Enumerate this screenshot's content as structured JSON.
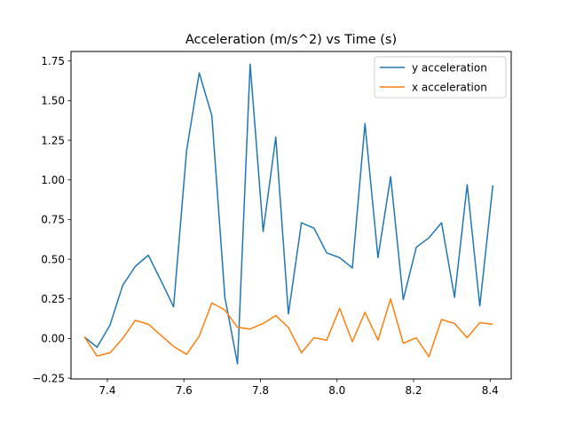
{
  "chart_data": {
    "type": "line",
    "title": "Acceleration (m/s^2) vs Time (s)",
    "xlabel": "",
    "ylabel": "",
    "xlim": [
      7.305,
      8.455
    ],
    "ylim": [
      -0.255,
      1.81
    ],
    "xticks": [
      7.4,
      7.6,
      7.8,
      8.0,
      8.2,
      8.4
    ],
    "xtick_labels": [
      "7.4",
      "7.6",
      "7.8",
      "8.0",
      "8.2",
      "8.4"
    ],
    "yticks": [
      -0.25,
      0.0,
      0.25,
      0.5,
      0.75,
      1.0,
      1.25,
      1.5,
      1.75
    ],
    "ytick_labels": [
      "−0.25",
      "0.00",
      "0.25",
      "0.50",
      "0.75",
      "1.00",
      "1.25",
      "1.50",
      "1.75"
    ],
    "grid": false,
    "legend_position": "top-right",
    "x": [
      7.34,
      7.373,
      7.407,
      7.44,
      7.473,
      7.507,
      7.54,
      7.573,
      7.607,
      7.64,
      7.673,
      7.707,
      7.74,
      7.773,
      7.807,
      7.84,
      7.873,
      7.907,
      7.94,
      7.973,
      8.007,
      8.04,
      8.073,
      8.107,
      8.14,
      8.173,
      8.207,
      8.24,
      8.273,
      8.307,
      8.34,
      8.373,
      8.407
    ],
    "series": [
      {
        "name": "y acceleration",
        "color": "#1f77b4",
        "values": [
          0.01,
          -0.055,
          0.085,
          0.335,
          0.455,
          0.525,
          0.365,
          0.2,
          1.185,
          1.675,
          1.405,
          0.26,
          -0.16,
          1.73,
          0.675,
          1.27,
          0.155,
          0.73,
          0.695,
          0.54,
          0.51,
          0.445,
          1.355,
          0.51,
          1.02,
          0.245,
          0.575,
          0.635,
          0.73,
          0.26,
          0.97,
          0.205,
          0.965
        ]
      },
      {
        "name": "x acceleration",
        "color": "#ff7f0e",
        "values": [
          0.01,
          -0.11,
          -0.09,
          0.0,
          0.115,
          0.09,
          0.02,
          -0.05,
          -0.1,
          0.015,
          0.225,
          0.18,
          0.07,
          0.06,
          0.095,
          0.145,
          0.07,
          -0.09,
          0.005,
          -0.01,
          0.19,
          -0.02,
          0.165,
          -0.01,
          0.25,
          -0.03,
          0.005,
          -0.115,
          0.12,
          0.095,
          0.005,
          0.1,
          0.09
        ]
      }
    ]
  }
}
